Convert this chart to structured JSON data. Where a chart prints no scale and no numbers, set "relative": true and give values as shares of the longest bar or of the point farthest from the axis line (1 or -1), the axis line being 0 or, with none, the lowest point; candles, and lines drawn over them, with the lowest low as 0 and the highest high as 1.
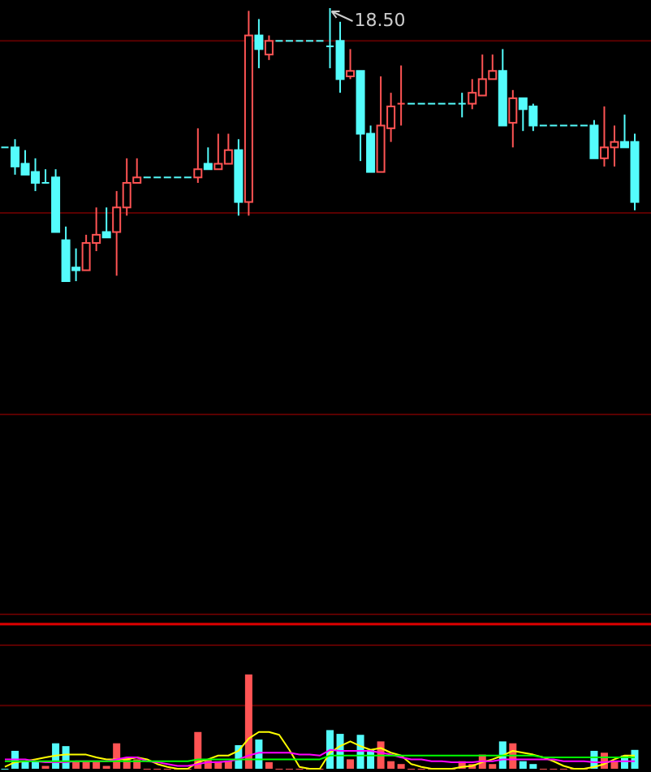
{
  "chart_data": [
    {
      "type": "candlestick",
      "relative": true,
      "annotations": [
        "18.50"
      ],
      "ref_lines": [
        {
          "axis": "y",
          "value": 0.88,
          "color": "#5a0000"
        },
        {
          "axis": "y",
          "value": 0.25,
          "color": "#5a0000"
        }
      ],
      "categories": [
        null,
        null,
        null,
        null,
        null,
        null,
        null,
        null,
        null,
        null,
        null,
        null,
        null,
        null,
        null,
        null,
        null,
        null,
        null,
        null,
        null,
        null,
        null,
        null,
        null,
        null,
        null,
        null,
        null,
        null,
        null,
        null,
        null,
        null,
        null,
        null,
        null,
        null,
        null,
        null,
        null,
        null,
        null,
        null,
        null,
        null,
        null,
        null,
        null,
        null,
        null,
        null,
        null,
        null,
        null,
        null,
        null,
        null,
        null,
        null,
        null,
        null,
        null
      ],
      "ohlc": [
        [
          0.49,
          0.49,
          0.49,
          0.49
        ],
        [
          0.49,
          0.52,
          0.39,
          0.42
        ],
        [
          0.43,
          0.48,
          0.39,
          0.39
        ],
        [
          0.4,
          0.45,
          0.33,
          0.36
        ],
        [
          0.36,
          0.41,
          0.36,
          0.36
        ],
        [
          0.38,
          0.41,
          0.18,
          0.18
        ],
        [
          0.15,
          0.2,
          0,
          0
        ],
        [
          0.05,
          0.12,
          0,
          0.04
        ],
        [
          0.04,
          0.17,
          0.04,
          0.14
        ],
        [
          0.14,
          0.27,
          0.11,
          0.17
        ],
        [
          0.18,
          0.27,
          0.16,
          0.16
        ],
        [
          0.18,
          0.33,
          0.02,
          0.27
        ],
        [
          0.27,
          0.45,
          0.24,
          0.36
        ],
        [
          0.36,
          0.45,
          0.36,
          0.38
        ],
        [
          0.38,
          0.38,
          0.38,
          0.38
        ],
        [
          0.38,
          0.38,
          0.38,
          0.38
        ],
        [
          0.38,
          0.38,
          0.38,
          0.38
        ],
        [
          0.38,
          0.38,
          0.38,
          0.38
        ],
        [
          0.38,
          0.38,
          0.38,
          0.38
        ],
        [
          0.38,
          0.56,
          0.36,
          0.41
        ],
        [
          0.43,
          0.49,
          0.41,
          0.41
        ],
        [
          0.41,
          0.54,
          0.41,
          0.43
        ],
        [
          0.43,
          0.54,
          0.43,
          0.48
        ],
        [
          0.48,
          0.52,
          0.24,
          0.29
        ],
        [
          0.29,
          0.99,
          0.24,
          0.9
        ],
        [
          0.9,
          0.96,
          0.78,
          0.85
        ],
        [
          0.83,
          0.9,
          0.81,
          0.88
        ],
        [
          0.88,
          0.88,
          0.88,
          0.88
        ],
        [
          0.88,
          0.88,
          0.88,
          0.88
        ],
        [
          0.88,
          0.88,
          0.88,
          0.88
        ],
        [
          0.88,
          0.88,
          0.88,
          0.88
        ],
        [
          0.88,
          0.88,
          0.88,
          0.88
        ],
        [
          0.86,
          1,
          0.78,
          0.86
        ],
        [
          0.88,
          0.95,
          0.69,
          0.74
        ],
        [
          0.75,
          0.85,
          0.74,
          0.77
        ],
        [
          0.77,
          0.77,
          0.44,
          0.54
        ],
        [
          0.54,
          0.57,
          0.4,
          0.4
        ],
        [
          0.4,
          0.75,
          0.4,
          0.57
        ],
        [
          0.56,
          0.69,
          0.51,
          0.64
        ],
        [
          0.65,
          0.79,
          0.57,
          0.65
        ],
        [
          0.65,
          0.65,
          0.65,
          0.65
        ],
        [
          0.65,
          0.65,
          0.65,
          0.65
        ],
        [
          0.65,
          0.65,
          0.65,
          0.65
        ],
        [
          0.65,
          0.65,
          0.65,
          0.65
        ],
        [
          0.65,
          0.65,
          0.65,
          0.65
        ],
        [
          0.65,
          0.69,
          0.6,
          0.65
        ],
        [
          0.65,
          0.74,
          0.63,
          0.69
        ],
        [
          0.68,
          0.83,
          0.68,
          0.74
        ],
        [
          0.74,
          0.83,
          0.74,
          0.77
        ],
        [
          0.77,
          0.85,
          0.57,
          0.57
        ],
        [
          0.58,
          0.7,
          0.49,
          0.67
        ],
        [
          0.67,
          0.67,
          0.55,
          0.63
        ],
        [
          0.64,
          0.65,
          0.55,
          0.57
        ],
        [
          0.57,
          0.57,
          0.57,
          0.57
        ],
        [
          0.57,
          0.57,
          0.57,
          0.57
        ],
        [
          0.57,
          0.57,
          0.57,
          0.57
        ],
        [
          0.57,
          0.57,
          0.57,
          0.57
        ],
        [
          0.57,
          0.57,
          0.57,
          0.57
        ],
        [
          0.57,
          0.59,
          0.45,
          0.45
        ],
        [
          0.45,
          0.64,
          0.42,
          0.49
        ],
        [
          0.49,
          0.57,
          0.42,
          0.51
        ],
        [
          0.51,
          0.61,
          0.49,
          0.49
        ],
        [
          0.51,
          0.54,
          0.26,
          0.29
        ]
      ],
      "colors": [
        "#54fcfc",
        "#54fcfc",
        "#54fcfc",
        "#54fcfc",
        "#54fcfc",
        "#54fcfc",
        "#54fcfc",
        "#54fcfc",
        "#ff5454",
        "#ff5454",
        "#54fcfc",
        "#ff5454",
        "#ff5454",
        "#ff5454",
        "#54fcfc",
        "#54fcfc",
        "#54fcfc",
        "#54fcfc",
        "#54fcfc",
        "#ff5454",
        "#54fcfc",
        "#ff5454",
        "#ff5454",
        "#54fcfc",
        "#ff5454",
        "#54fcfc",
        "#ff5454",
        "#54fcfc",
        "#54fcfc",
        "#54fcfc",
        "#54fcfc",
        "#54fcfc",
        "#54fcfc",
        "#54fcfc",
        "#ff5454",
        "#54fcfc",
        "#54fcfc",
        "#ff5454",
        "#ff5454",
        "#ff5454",
        "#54fcfc",
        "#54fcfc",
        "#54fcfc",
        "#54fcfc",
        "#54fcfc",
        "#54fcfc",
        "#ff5454",
        "#ff5454",
        "#ff5454",
        "#54fcfc",
        "#ff5454",
        "#54fcfc",
        "#54fcfc",
        "#54fcfc",
        "#54fcfc",
        "#54fcfc",
        "#54fcfc",
        "#54fcfc",
        "#54fcfc",
        "#ff5454",
        "#ff5454",
        "#54fcfc",
        "#54fcfc"
      ]
    },
    {
      "type": "bar",
      "relative": true,
      "ref_lines": [
        {
          "axis": "y",
          "value": 0.67,
          "color": "#5a0000"
        }
      ],
      "categories": [
        null,
        null,
        null,
        null,
        null,
        null,
        null,
        null,
        null,
        null,
        null,
        null,
        null,
        null,
        null,
        null,
        null,
        null,
        null,
        null,
        null,
        null,
        null,
        null,
        null,
        null,
        null,
        null,
        null,
        null,
        null,
        null,
        null,
        null,
        null,
        null,
        null,
        null,
        null,
        null,
        null,
        null,
        null,
        null,
        null,
        null,
        null,
        null,
        null,
        null,
        null,
        null,
        null,
        null,
        null,
        null,
        null,
        null,
        null,
        null,
        null,
        null,
        null
      ],
      "series": [
        {
          "type": "bar",
          "colors": [
            "#54fcfc",
            "#54fcfc",
            "#54fcfc",
            "#54fcfc",
            "#ff5454",
            "#54fcfc",
            "#54fcfc",
            "#ff5454",
            "#ff5454",
            "#ff5454",
            "#ff5454",
            "#ff5454",
            "#ff5454",
            "#ff5454",
            "#ff5454",
            "#ff5454",
            "#ff5454",
            "#ff5454",
            "#ff5454",
            "#ff5454",
            "#ff5454",
            "#ff5454",
            "#ff5454",
            "#54fcfc",
            "#ff5454",
            "#54fcfc",
            "#ff5454",
            "#ff5454",
            "#ff5454",
            "#ff5454",
            "#ff5454",
            "#ff5454",
            "#54fcfc",
            "#54fcfc",
            "#ff5454",
            "#54fcfc",
            "#54fcfc",
            "#ff5454",
            "#ff5454",
            "#ff5454",
            "#ff5454",
            "#ff5454",
            "#ff5454",
            "#ff5454",
            "#ff5454",
            "#ff5454",
            "#ff5454",
            "#ff5454",
            "#ff5454",
            "#54fcfc",
            "#ff5454",
            "#54fcfc",
            "#54fcfc",
            "#ff5454",
            "#ff5454",
            "#ff5454",
            "#ff5454",
            "#ff5454",
            "#54fcfc",
            "#ff5454",
            "#ff5454",
            "#54fcfc",
            "#54fcfc"
          ],
          "values": [
            0,
            0.19,
            0.08,
            0.08,
            0.03,
            0.27,
            0.24,
            0.07,
            0.07,
            0.07,
            0.03,
            0.27,
            0.12,
            0.1,
            0,
            0,
            0,
            0,
            0,
            0.39,
            0.1,
            0.08,
            0.08,
            0.25,
            1,
            0.31,
            0.07,
            0,
            0,
            0,
            0,
            0,
            0.41,
            0.37,
            0.1,
            0.36,
            0.2,
            0.29,
            0.08,
            0.05,
            0,
            0,
            0,
            0,
            0,
            0.08,
            0.05,
            0.15,
            0.05,
            0.29,
            0.27,
            0.08,
            0.05,
            0,
            0,
            0,
            0,
            0,
            0.19,
            0.17,
            0.08,
            0.14,
            0.2
          ]
        },
        {
          "type": "line",
          "color": "#ffff00",
          "values": [
            0.02,
            0.07,
            0.08,
            0.1,
            0.12,
            0.14,
            0.15,
            0.15,
            0.15,
            0.12,
            0.1,
            0.1,
            0.1,
            0.12,
            0.1,
            0.05,
            0.02,
            0,
            0,
            0.07,
            0.1,
            0.14,
            0.14,
            0.19,
            0.32,
            0.39,
            0.39,
            0.36,
            0.2,
            0.02,
            0,
            0,
            0.17,
            0.24,
            0.29,
            0.24,
            0.2,
            0.22,
            0.17,
            0.14,
            0.05,
            0.02,
            0,
            0,
            0,
            0.02,
            0.03,
            0.07,
            0.1,
            0.14,
            0.19,
            0.17,
            0.15,
            0.12,
            0.08,
            0.03,
            0,
            0,
            0.02,
            0.05,
            0.1,
            0.14,
            0.14
          ]
        },
        {
          "type": "line",
          "color": "#ff00ff",
          "values": [
            0.1,
            0.1,
            0.1,
            0.08,
            0.07,
            0.07,
            0.07,
            0.08,
            0.08,
            0.08,
            0.08,
            0.1,
            0.12,
            0.12,
            0.08,
            0.07,
            0.05,
            0.03,
            0.03,
            0.05,
            0.07,
            0.07,
            0.08,
            0.1,
            0.14,
            0.17,
            0.17,
            0.17,
            0.17,
            0.15,
            0.15,
            0.14,
            0.2,
            0.19,
            0.19,
            0.19,
            0.19,
            0.17,
            0.15,
            0.12,
            0.1,
            0.1,
            0.08,
            0.08,
            0.07,
            0.07,
            0.07,
            0.08,
            0.08,
            0.1,
            0.1,
            0.1,
            0.1,
            0.1,
            0.1,
            0.08,
            0.08,
            0.08,
            0.07,
            0.07,
            0.08,
            0.08,
            0.08
          ]
        },
        {
          "type": "line",
          "color": "#00ff00",
          "values": [
            0.08,
            0.08,
            0.08,
            0.08,
            0.08,
            0.08,
            0.08,
            0.08,
            0.08,
            0.08,
            0.08,
            0.08,
            0.08,
            0.08,
            0.08,
            0.08,
            0.08,
            0.08,
            0.08,
            0.1,
            0.1,
            0.1,
            0.1,
            0.1,
            0.1,
            0.1,
            0.1,
            0.1,
            0.1,
            0.1,
            0.1,
            0.1,
            0.14,
            0.14,
            0.14,
            0.14,
            0.14,
            0.14,
            0.14,
            0.14,
            0.14,
            0.14,
            0.14,
            0.14,
            0.14,
            0.14,
            0.14,
            0.14,
            0.14,
            0.14,
            0.14,
            0.14,
            0.14,
            0.12,
            0.12,
            0.12,
            0.12,
            0.12,
            0.12,
            0.12,
            0.12,
            0.12,
            0.12
          ]
        }
      ]
    }
  ]
}
